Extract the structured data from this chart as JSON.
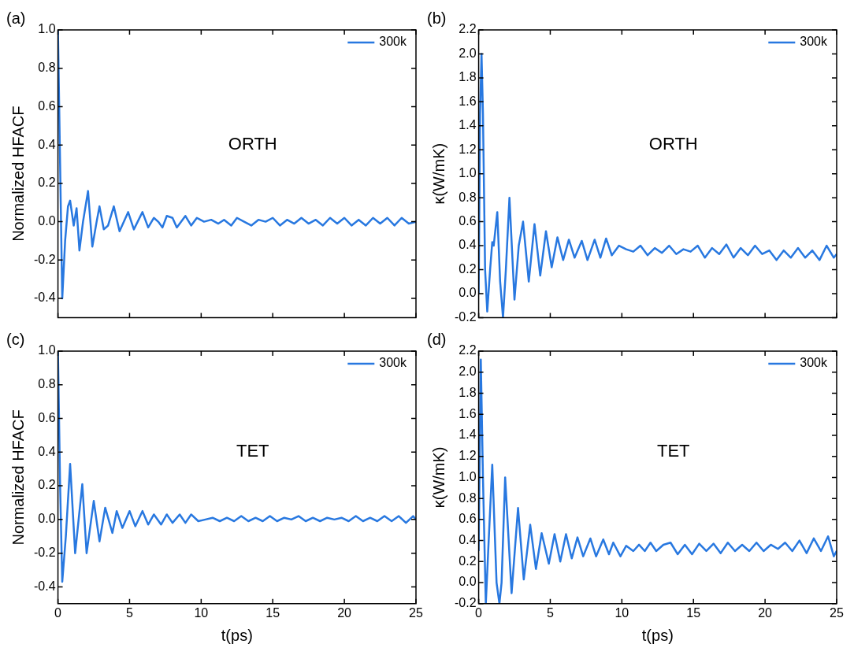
{
  "chart_data": [
    {
      "type": "line",
      "title": "(a)",
      "ylabel": "Normalized HFACF",
      "annotations": [
        "ORTH"
      ],
      "legend": "top right",
      "tick_labels": "y",
      "grid": false,
      "line_style": "solid",
      "marker": "none",
      "xlim": [
        0,
        25
      ],
      "xticks": [
        0,
        5,
        10,
        15,
        20,
        25
      ],
      "ylim": [
        -0.5,
        1.0
      ],
      "yticks": [
        -0.4,
        -0.2,
        {
          "value": 0,
          "label": "0.0"
        },
        0.2,
        0.4,
        0.6,
        0.8,
        {
          "value": 1,
          "label": "1.0"
        }
      ],
      "series": [
        {
          "name": "300k",
          "color": "#2878e0",
          "x": [
            0,
            0.15,
            0.3,
            0.5,
            0.7,
            0.85,
            1.1,
            1.3,
            1.5,
            1.75,
            2.1,
            2.4,
            2.7,
            2.9,
            3.2,
            3.5,
            3.9,
            4.3,
            4.9,
            5.3,
            5.9,
            6.3,
            6.7,
            7.0,
            7.3,
            7.6,
            8.0,
            8.3,
            8.9,
            9.3,
            9.7,
            10.2,
            10.7,
            11.2,
            11.6,
            12.1,
            12.5,
            13.0,
            13.5,
            14.0,
            14.5,
            15.0,
            15.5,
            16.0,
            16.5,
            17.0,
            17.5,
            18.0,
            18.5,
            19.0,
            19.5,
            20.0,
            20.5,
            21.0,
            21.5,
            22.0,
            22.5,
            23.0,
            23.5,
            24.0,
            24.5,
            25.0
          ],
          "values": [
            1.0,
            0.3,
            -0.4,
            -0.1,
            0.08,
            0.11,
            -0.02,
            0.07,
            -0.15,
            0.0,
            0.16,
            -0.13,
            0.0,
            0.08,
            -0.04,
            -0.02,
            0.08,
            -0.05,
            0.05,
            -0.04,
            0.05,
            -0.03,
            0.02,
            0.0,
            -0.03,
            0.03,
            0.02,
            -0.03,
            0.03,
            -0.02,
            0.02,
            0.0,
            0.01,
            -0.01,
            0.01,
            -0.02,
            0.02,
            0.0,
            -0.02,
            0.01,
            0.0,
            0.02,
            -0.02,
            0.01,
            -0.01,
            0.02,
            -0.01,
            0.01,
            -0.02,
            0.02,
            -0.01,
            0.02,
            -0.02,
            0.01,
            -0.02,
            0.02,
            -0.01,
            0.02,
            -0.02,
            0.02,
            -0.01,
            0.0
          ]
        }
      ]
    },
    {
      "type": "line",
      "title": "(b)",
      "ylabel": "κ(W/mK)",
      "annotations": [
        "ORTH"
      ],
      "legend": "top right",
      "tick_labels": "y",
      "grid": false,
      "line_style": "solid",
      "marker": "none",
      "xlim": [
        0,
        25
      ],
      "xticks": [
        0,
        5,
        10,
        15,
        20,
        25
      ],
      "ylim": [
        -0.2,
        2.2
      ],
      "yticks": [
        -0.2,
        {
          "value": 0,
          "label": "0.0"
        },
        0.2,
        0.4,
        0.6,
        0.8,
        {
          "value": 1,
          "label": "1.0"
        },
        1.2,
        1.4,
        1.6,
        1.8,
        {
          "value": 2,
          "label": "2.0"
        },
        2.2
      ],
      "series": [
        {
          "name": "300k",
          "color": "#2878e0",
          "x": [
            0,
            0.1,
            0.2,
            0.3,
            0.45,
            0.6,
            0.8,
            0.95,
            1.05,
            1.3,
            1.5,
            1.7,
            1.9,
            2.15,
            2.5,
            2.8,
            3.1,
            3.5,
            3.9,
            4.3,
            4.7,
            5.1,
            5.5,
            5.9,
            6.3,
            6.7,
            7.2,
            7.6,
            8.1,
            8.5,
            8.9,
            9.3,
            9.8,
            10.3,
            10.8,
            11.3,
            11.8,
            12.3,
            12.8,
            13.3,
            13.8,
            14.3,
            14.8,
            15.3,
            15.8,
            16.3,
            16.8,
            17.3,
            17.8,
            18.3,
            18.8,
            19.3,
            19.8,
            20.3,
            20.8,
            21.3,
            21.8,
            22.3,
            22.8,
            23.3,
            23.8,
            24.3,
            24.8,
            25.0
          ],
          "values": [
            0,
            1.5,
            2.0,
            1.5,
            0.2,
            -0.15,
            0.2,
            0.43,
            0.4,
            0.68,
            0.1,
            -0.2,
            0.2,
            0.8,
            -0.05,
            0.4,
            0.6,
            0.1,
            0.58,
            0.15,
            0.52,
            0.22,
            0.47,
            0.28,
            0.45,
            0.3,
            0.44,
            0.28,
            0.45,
            0.3,
            0.46,
            0.32,
            0.4,
            0.37,
            0.35,
            0.4,
            0.32,
            0.38,
            0.34,
            0.4,
            0.33,
            0.37,
            0.35,
            0.4,
            0.3,
            0.38,
            0.33,
            0.41,
            0.3,
            0.38,
            0.32,
            0.4,
            0.33,
            0.36,
            0.28,
            0.36,
            0.3,
            0.38,
            0.3,
            0.36,
            0.28,
            0.4,
            0.3,
            0.33
          ]
        }
      ]
    },
    {
      "type": "line",
      "title": "(c)",
      "xlabel": "t(ps)",
      "ylabel": "Normalized HFACF",
      "annotations": [
        "TET"
      ],
      "legend": "top right",
      "grid": false,
      "line_style": "solid",
      "marker": "none",
      "xlim": [
        0,
        25
      ],
      "xticks": [
        0,
        5,
        10,
        15,
        20,
        25
      ],
      "ylim": [
        -0.5,
        1.0
      ],
      "yticks": [
        -0.4,
        -0.2,
        {
          "value": 0,
          "label": "0.0"
        },
        0.2,
        0.4,
        0.6,
        0.8,
        {
          "value": 1,
          "label": "1.0"
        }
      ],
      "series": [
        {
          "name": "300k",
          "color": "#2878e0",
          "x": [
            0,
            0.15,
            0.3,
            0.55,
            0.85,
            1.2,
            1.7,
            2.0,
            2.5,
            2.9,
            3.3,
            3.8,
            4.1,
            4.5,
            5.0,
            5.4,
            5.9,
            6.3,
            6.7,
            7.2,
            7.6,
            8.0,
            8.5,
            8.9,
            9.3,
            9.8,
            10.3,
            10.8,
            11.3,
            11.8,
            12.3,
            12.8,
            13.3,
            13.8,
            14.3,
            14.8,
            15.3,
            15.8,
            16.3,
            16.8,
            17.3,
            17.8,
            18.3,
            18.8,
            19.3,
            19.8,
            20.3,
            20.8,
            21.3,
            21.8,
            22.3,
            22.8,
            23.3,
            23.8,
            24.3,
            24.8,
            25.0
          ],
          "values": [
            1.0,
            0.2,
            -0.37,
            -0.1,
            0.33,
            -0.2,
            0.21,
            -0.2,
            0.11,
            -0.13,
            0.07,
            -0.08,
            0.05,
            -0.05,
            0.05,
            -0.04,
            0.05,
            -0.03,
            0.03,
            -0.03,
            0.03,
            -0.02,
            0.03,
            -0.02,
            0.03,
            -0.01,
            0.0,
            0.01,
            -0.01,
            0.01,
            -0.01,
            0.02,
            -0.01,
            0.01,
            -0.01,
            0.02,
            -0.01,
            0.01,
            0.0,
            0.02,
            -0.01,
            0.01,
            -0.01,
            0.01,
            0.0,
            0.01,
            -0.01,
            0.02,
            -0.01,
            0.01,
            -0.01,
            0.02,
            -0.01,
            0.02,
            -0.02,
            0.02,
            0.0
          ]
        }
      ]
    },
    {
      "type": "line",
      "title": "(d)",
      "xlabel": "t(ps)",
      "ylabel": "κ(W/mK)",
      "annotations": [
        "TET"
      ],
      "legend": "top right",
      "grid": false,
      "line_style": "solid",
      "marker": "none",
      "xlim": [
        0,
        25
      ],
      "xticks": [
        0,
        5,
        10,
        15,
        20,
        25
      ],
      "ylim": [
        -0.2,
        2.2
      ],
      "yticks": [
        -0.2,
        {
          "value": 0,
          "label": "0.0"
        },
        0.2,
        0.4,
        0.6,
        0.8,
        {
          "value": 1,
          "label": "1.0"
        },
        1.2,
        1.4,
        1.6,
        1.8,
        {
          "value": 2,
          "label": "2.0"
        },
        2.2
      ],
      "series": [
        {
          "name": "300k",
          "color": "#2878e0",
          "x": [
            0,
            0.15,
            0.3,
            0.5,
            0.7,
            0.95,
            1.25,
            1.45,
            1.6,
            1.85,
            2.3,
            2.75,
            3.15,
            3.6,
            4.0,
            4.4,
            4.9,
            5.3,
            5.7,
            6.1,
            6.5,
            6.9,
            7.3,
            7.8,
            8.2,
            8.7,
            9.1,
            9.4,
            9.9,
            10.3,
            10.8,
            11.2,
            11.6,
            12.0,
            12.4,
            12.9,
            13.4,
            13.9,
            14.4,
            14.9,
            15.4,
            15.9,
            16.4,
            16.9,
            17.4,
            17.9,
            18.4,
            18.9,
            19.4,
            19.9,
            20.4,
            20.9,
            21.4,
            21.9,
            22.4,
            22.9,
            23.4,
            23.9,
            24.4,
            24.8,
            25.0
          ],
          "values": [
            0.3,
            2.12,
            1.0,
            -0.2,
            0.4,
            1.12,
            0.0,
            -0.2,
            0.0,
            1.0,
            -0.1,
            0.71,
            0.03,
            0.55,
            0.13,
            0.47,
            0.18,
            0.46,
            0.2,
            0.46,
            0.23,
            0.43,
            0.25,
            0.42,
            0.25,
            0.41,
            0.27,
            0.38,
            0.25,
            0.35,
            0.3,
            0.36,
            0.3,
            0.38,
            0.3,
            0.36,
            0.38,
            0.27,
            0.36,
            0.27,
            0.37,
            0.3,
            0.37,
            0.28,
            0.38,
            0.3,
            0.36,
            0.3,
            0.38,
            0.3,
            0.36,
            0.32,
            0.38,
            0.3,
            0.4,
            0.28,
            0.42,
            0.3,
            0.44,
            0.25,
            0.3
          ]
        }
      ]
    }
  ]
}
